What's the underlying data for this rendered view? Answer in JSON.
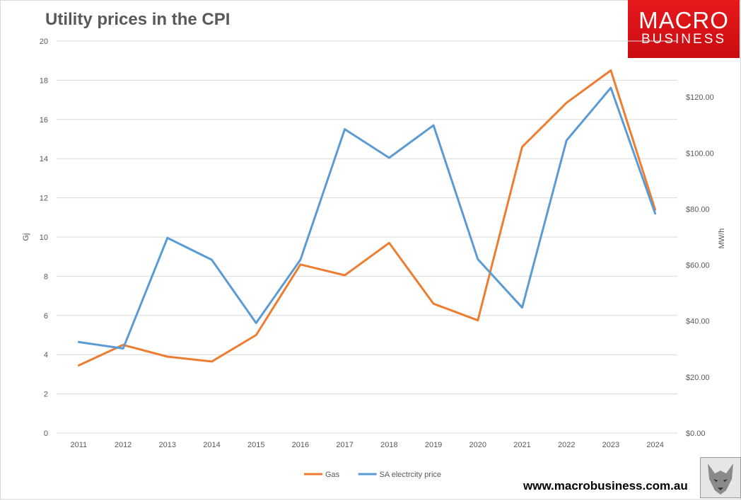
{
  "header": {
    "title": "Utility prices in the CPI",
    "brand_line1": "MACRO",
    "brand_line2": "BUSINESS",
    "website": "www.macrobusiness.com.au",
    "brand_color": "#e8191d"
  },
  "chart_data": {
    "type": "line",
    "title": "Utility prices in the CPI",
    "xlabel": "",
    "ylabel_left": "Gj",
    "ylabel_right": "MW/h",
    "categories": [
      "2011",
      "2012",
      "2013",
      "2014",
      "2015",
      "2016",
      "2017",
      "2018",
      "2019",
      "2020",
      "2021",
      "2022",
      "2023",
      "2024"
    ],
    "ylim_left": [
      0,
      20
    ],
    "yticks_left": [
      0,
      2,
      4,
      6,
      8,
      10,
      12,
      14,
      16,
      18,
      20
    ],
    "ylim_right": [
      0,
      140
    ],
    "yticks_right": [
      0,
      20,
      40,
      60,
      80,
      100,
      120
    ],
    "yticks_right_labels": [
      "$0.00",
      "$20.00",
      "$40.00",
      "$60.00",
      "$80.00",
      "$100.00",
      "$120.00"
    ],
    "grid": true,
    "legend_position": "bottom",
    "series": [
      {
        "name": "Gas",
        "axis": "left",
        "color": "#ed7d31",
        "values": [
          3.45,
          4.5,
          3.9,
          3.65,
          5.0,
          8.6,
          8.05,
          9.7,
          6.6,
          5.75,
          14.6,
          16.85,
          18.5,
          11.4
        ]
      },
      {
        "name": "SA electrcity price",
        "axis": "right",
        "color": "#5b9bd5",
        "values": [
          32.5,
          30.2,
          69.7,
          61.9,
          39.3,
          61.9,
          108.5,
          98.3,
          109.9,
          62.1,
          44.8,
          104.5,
          123.3,
          78.4
        ]
      }
    ]
  }
}
